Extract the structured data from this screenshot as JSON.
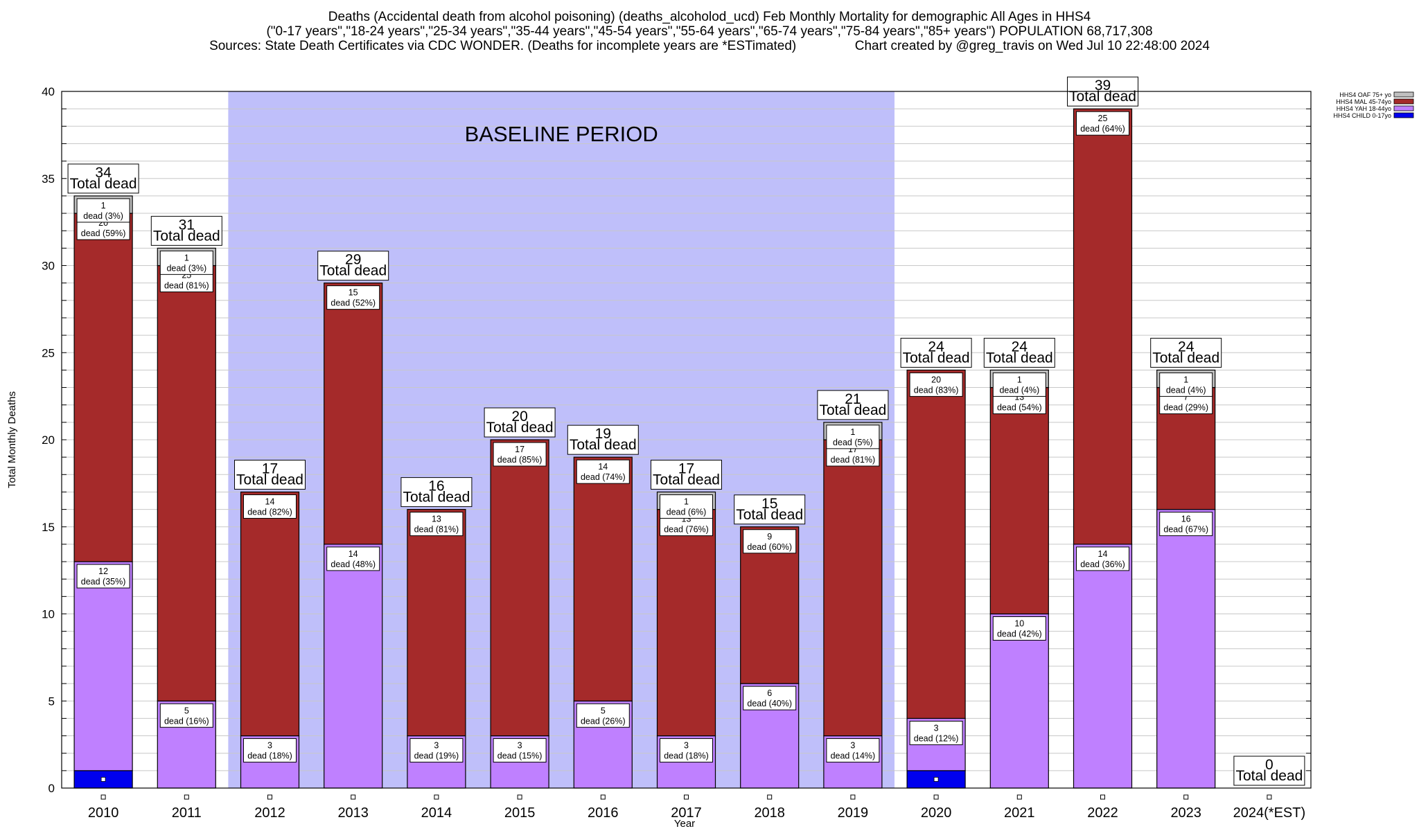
{
  "title": {
    "line1": "Deaths (Accidental death from alcohol poisoning) (deaths_alcoholod_ucd) Feb Monthly Mortality for demographic All Ages in HHS4",
    "line2": "(\"0-17 years\",\"18-24 years\",\"25-34 years\",\"35-44 years\",\"45-54 years\",\"55-64 years\",\"65-74 years\",\"75-84 years\",\"85+ years\") POPULATION 68,717,308",
    "line3": "Sources: State Death Certificates via CDC WONDER. (Deaths for incomplete years are *ESTimated)                Chart created by @greg_travis on Wed Jul 10 22:48:00 2024"
  },
  "chart_data": {
    "type": "bar",
    "stacked": true,
    "xlabel": "Year",
    "ylabel": "Total Monthly Deaths",
    "ylim": [
      0,
      40
    ],
    "yticks": [
      "0",
      "5",
      "10",
      "15",
      "20",
      "25",
      "30",
      "35",
      "40"
    ],
    "grid": true,
    "legend_position": "top-right",
    "baseline_label": "BASELINE PERIOD",
    "baseline_range": [
      "2012",
      "2019"
    ],
    "total_suffix": "Total dead",
    "categories": [
      "2010",
      "2011",
      "2012",
      "2013",
      "2014",
      "2015",
      "2016",
      "2017",
      "2018",
      "2019",
      "2020",
      "2021",
      "2022",
      "2023",
      "2024(*EST)"
    ],
    "totals": [
      34,
      31,
      17,
      29,
      16,
      20,
      19,
      17,
      15,
      21,
      24,
      24,
      39,
      24,
      0
    ],
    "series": [
      {
        "name": "HHS4 CHILD 0-17yo",
        "color": "#0000ee",
        "values": [
          1,
          0,
          0,
          0,
          0,
          0,
          0,
          0,
          0,
          0,
          1,
          0,
          0,
          0,
          0
        ],
        "labels": [
          null,
          null,
          null,
          null,
          null,
          null,
          null,
          null,
          null,
          null,
          null,
          null,
          null,
          null,
          null
        ]
      },
      {
        "name": "HHS4 YAH 18-44yo",
        "color": "#bf80ff",
        "values": [
          12,
          5,
          3,
          14,
          3,
          3,
          5,
          3,
          6,
          3,
          3,
          10,
          14,
          16,
          0
        ],
        "labels": [
          "dead (35%)",
          "dead (16%)",
          "dead (18%)",
          "dead (48%)",
          "dead (19%)",
          "dead (15%)",
          "dead (26%)",
          "dead (18%)",
          "dead (40%)",
          "dead (14%)",
          "dead (12%)",
          "dead (42%)",
          "dead (36%)",
          "dead (67%)",
          null
        ]
      },
      {
        "name": "HHS4 MAL 45-74yo",
        "color": "#a52a2a",
        "values": [
          20,
          25,
          14,
          15,
          13,
          17,
          14,
          13,
          9,
          17,
          20,
          13,
          25,
          7,
          0
        ],
        "labels": [
          "dead (59%)",
          "dead (81%)",
          "dead (82%)",
          "dead (52%)",
          "dead (81%)",
          "dead (85%)",
          "dead (74%)",
          "dead (76%)",
          "dead (60%)",
          "dead (81%)",
          "dead (83%)",
          "dead (54%)",
          "dead (64%)",
          "dead (29%)",
          null
        ]
      },
      {
        "name": "HHS4 OAF 75+ yo",
        "color": "#c0c0c0",
        "values": [
          1,
          1,
          0,
          0,
          0,
          0,
          0,
          1,
          0,
          1,
          0,
          1,
          0,
          1,
          0
        ],
        "labels": [
          "dead (3%)",
          "dead (3%)",
          null,
          null,
          null,
          null,
          null,
          "dead (6%)",
          null,
          "dead (5%)",
          null,
          "dead (4%)",
          null,
          "dead (4%)",
          null
        ]
      }
    ]
  }
}
